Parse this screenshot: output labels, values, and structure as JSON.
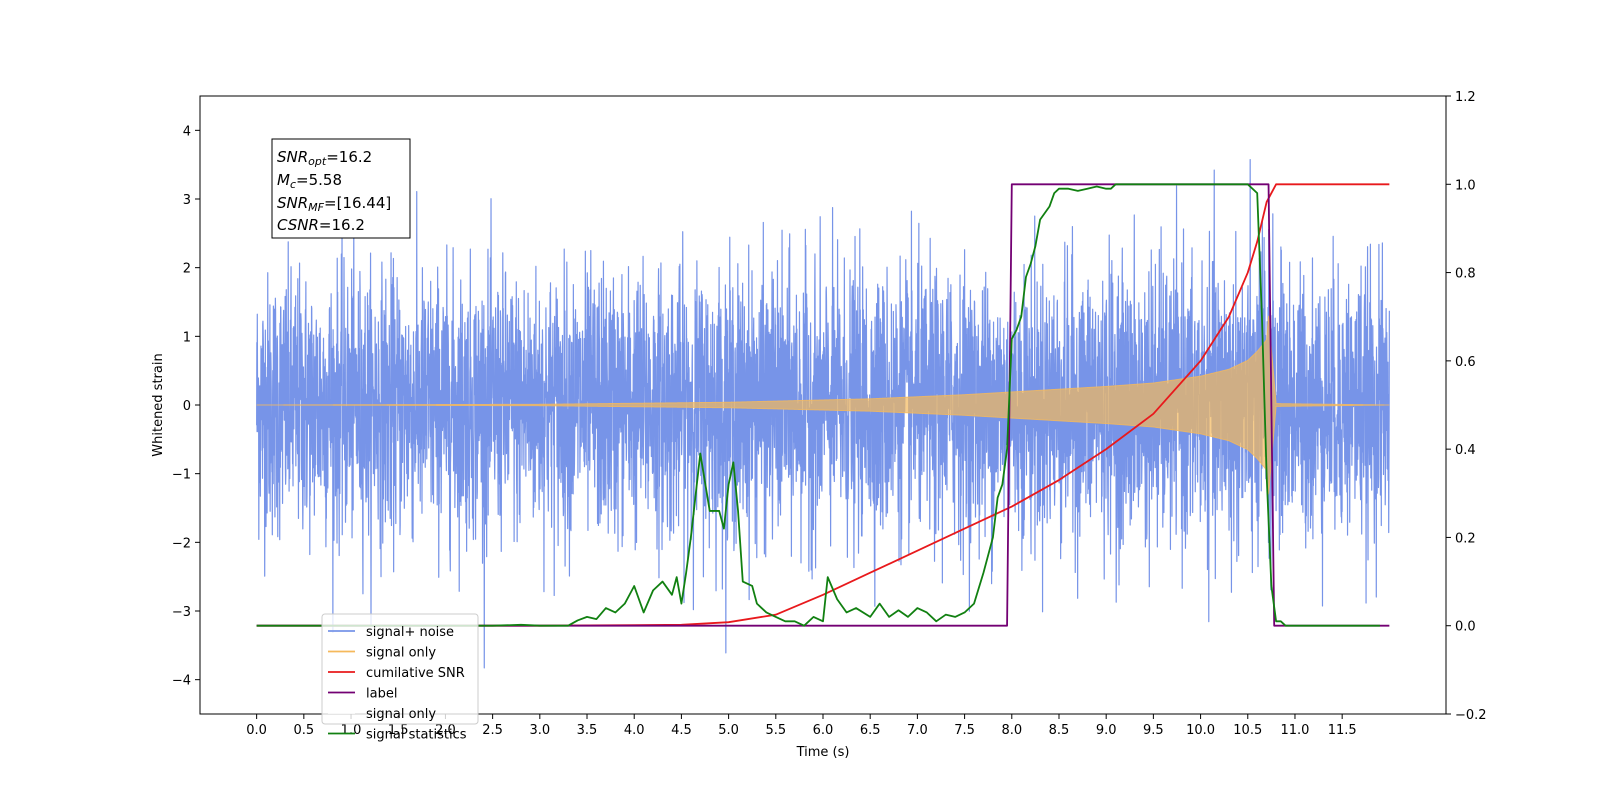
{
  "chart_data": {
    "type": "line",
    "title": "",
    "xlabel": "Time (s)",
    "ylabel": "Whitened strain",
    "xlim": [
      -0.6,
      12.6
    ],
    "ylim": [
      -4.5,
      4.5
    ],
    "y2lim": [
      -0.2,
      1.2
    ],
    "x_ticks": [
      0.0,
      0.5,
      1.0,
      1.5,
      2.0,
      2.5,
      3.0,
      3.5,
      4.0,
      4.5,
      5.0,
      5.5,
      6.0,
      6.5,
      7.0,
      7.5,
      8.0,
      8.5,
      9.0,
      9.5,
      10.0,
      10.5,
      11.0,
      11.5
    ],
    "x_tick_labels": [
      "0.0",
      "0.5",
      "1.0",
      "1.5",
      "2.0",
      "2.5",
      "3.0",
      "3.5",
      "4.0",
      "4.5",
      "5.0",
      "5.5",
      "6.0",
      "6.5",
      "7.0",
      "7.5",
      "8.0",
      "8.5",
      "9.0",
      "9.5",
      "10.0",
      "10.5",
      "11.0",
      "11.5"
    ],
    "y_ticks": [
      -4,
      -3,
      -2,
      -1,
      0,
      1,
      2,
      3,
      4
    ],
    "y_tick_labels": [
      "−4",
      "−3",
      "−2",
      "−1",
      "0",
      "1",
      "2",
      "3",
      "4"
    ],
    "y2_ticks": [
      -0.2,
      0.0,
      0.2,
      0.4,
      0.6,
      0.8,
      1.0,
      1.2
    ],
    "y2_tick_labels": [
      "−0.2",
      "0.0",
      "0.2",
      "0.4",
      "0.6",
      "0.8",
      "1.0",
      "1.2"
    ],
    "grid": false,
    "legend_position": "lower-left",
    "annotation": {
      "snr_opt_label": "SNR",
      "snr_opt_sub": "opt",
      "snr_opt_value": "=16.2",
      "mc_label": "M",
      "mc_sub": "c",
      "mc_value": "=5.58",
      "snr_mf_label": "SNR",
      "snr_mf_sub": "MF",
      "snr_mf_value": "=[16.44]",
      "csnr_label": "CSNR",
      "csnr_value": "=16.2"
    },
    "series": [
      {
        "name": "signal+ noise",
        "axis": "left",
        "color": "#7794e8",
        "kind": "noise",
        "x_range": [
          0.0,
          12.0
        ],
        "noise_sigma": 1.0,
        "y_extent_approx": [
          -4.0,
          4.1
        ]
      },
      {
        "name": "signal only",
        "axis": "left",
        "color": "#f5b95b",
        "kind": "chirp",
        "x_range": [
          0.0,
          12.0
        ],
        "merger_time": 10.72,
        "amplitude_envelope": {
          "x": [
            0.0,
            3.0,
            5.0,
            6.5,
            7.5,
            8.0,
            8.5,
            9.0,
            9.5,
            10.0,
            10.3,
            10.5,
            10.6,
            10.7,
            10.72,
            10.8,
            12.0
          ],
          "y": [
            0.0,
            0.01,
            0.04,
            0.09,
            0.15,
            0.19,
            0.23,
            0.27,
            0.32,
            0.42,
            0.52,
            0.65,
            0.78,
            0.95,
            1.3,
            0.02,
            0.0
          ]
        }
      },
      {
        "name": "cumilative SNR",
        "axis": "right",
        "color": "#e8191c",
        "x": [
          0.0,
          3.0,
          4.5,
          5.0,
          5.5,
          6.0,
          6.5,
          7.0,
          7.5,
          8.0,
          8.5,
          9.0,
          9.5,
          10.0,
          10.3,
          10.5,
          10.6,
          10.7,
          10.8,
          12.0
        ],
        "y": [
          0.0,
          0.0,
          0.002,
          0.008,
          0.025,
          0.07,
          0.12,
          0.17,
          0.22,
          0.27,
          0.33,
          0.4,
          0.48,
          0.6,
          0.7,
          0.8,
          0.87,
          0.96,
          1.0,
          1.0
        ]
      },
      {
        "name": "label",
        "axis": "right",
        "color": "#730073",
        "x": [
          0.0,
          7.95,
          8.0,
          10.72,
          10.78,
          12.0
        ],
        "y": [
          0.0,
          0.0,
          1.0,
          1.0,
          0.0,
          0.0
        ]
      },
      {
        "name": "signal only",
        "axis": "right",
        "color": "#dddddd",
        "hidden": true,
        "x": [],
        "y": []
      },
      {
        "name": "signal statistics",
        "axis": "right",
        "color": "#118011",
        "x": [
          0.0,
          0.5,
          1.0,
          1.5,
          2.0,
          2.5,
          2.8,
          3.0,
          3.3,
          3.4,
          3.5,
          3.6,
          3.7,
          3.8,
          3.9,
          4.0,
          4.1,
          4.2,
          4.3,
          4.4,
          4.45,
          4.5,
          4.55,
          4.6,
          4.7,
          4.8,
          4.9,
          4.95,
          5.0,
          5.05,
          5.1,
          5.15,
          5.25,
          5.3,
          5.35,
          5.4,
          5.5,
          5.6,
          5.7,
          5.8,
          5.9,
          6.0,
          6.05,
          6.15,
          6.25,
          6.35,
          6.5,
          6.6,
          6.7,
          6.8,
          6.9,
          7.0,
          7.1,
          7.2,
          7.3,
          7.4,
          7.5,
          7.6,
          7.7,
          7.8,
          7.85,
          7.9,
          7.95,
          8.0,
          8.05,
          8.1,
          8.15,
          8.2,
          8.25,
          8.3,
          8.4,
          8.45,
          8.5,
          8.6,
          8.7,
          8.8,
          8.9,
          9.0,
          9.05,
          9.1,
          9.2,
          9.5,
          10.0,
          10.5,
          10.6,
          10.65,
          10.7,
          10.75,
          10.8,
          10.85,
          10.9,
          11.0,
          11.5,
          11.9
        ],
        "y": [
          0.0,
          0.0,
          0.0,
          0.0,
          0.0,
          0.0,
          0.002,
          0.0,
          0.0,
          0.012,
          0.02,
          0.015,
          0.04,
          0.03,
          0.05,
          0.09,
          0.03,
          0.08,
          0.1,
          0.07,
          0.11,
          0.05,
          0.12,
          0.2,
          0.39,
          0.26,
          0.26,
          0.22,
          0.32,
          0.37,
          0.26,
          0.1,
          0.09,
          0.05,
          0.04,
          0.03,
          0.02,
          0.01,
          0.01,
          0.0,
          0.02,
          0.01,
          0.11,
          0.06,
          0.03,
          0.04,
          0.02,
          0.05,
          0.02,
          0.035,
          0.02,
          0.04,
          0.03,
          0.01,
          0.025,
          0.02,
          0.03,
          0.05,
          0.12,
          0.2,
          0.29,
          0.32,
          0.4,
          0.65,
          0.67,
          0.7,
          0.79,
          0.82,
          0.86,
          0.92,
          0.95,
          0.98,
          0.99,
          0.99,
          0.985,
          0.99,
          0.995,
          0.99,
          0.99,
          1.0,
          1.0,
          1.0,
          1.0,
          1.0,
          0.98,
          0.7,
          0.34,
          0.09,
          0.01,
          0.01,
          0.0,
          0.0,
          0.0,
          0.0
        ]
      }
    ]
  }
}
